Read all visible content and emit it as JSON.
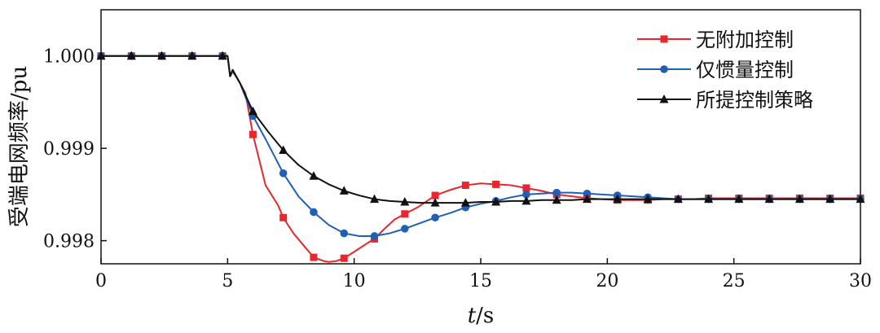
{
  "chart_data": {
    "type": "line",
    "xlabel": "t/s",
    "xlabel_var": "t",
    "xlabel_unit": "/s",
    "ylabel": "受端电网频率/pu",
    "xlim": [
      0,
      30
    ],
    "ylim": [
      0.99775,
      1.0005
    ],
    "x_ticks": [
      "0",
      "5",
      "10",
      "15",
      "20",
      "25",
      "30"
    ],
    "x_tick_values": [
      0,
      5,
      10,
      15,
      20,
      25,
      30
    ],
    "y_ticks": [
      "0.998",
      "0.999",
      "1.000"
    ],
    "y_tick_values": [
      0.998,
      0.999,
      1.0
    ],
    "grid": false,
    "legend_position": "top-right",
    "series": [
      {
        "name": "无附加控制",
        "color": "#e8262b",
        "marker": "square",
        "x": [
          0,
          1.2,
          2.4,
          3.6,
          4.8,
          5.0,
          5.1,
          5.2,
          5.4,
          5.7,
          6.0,
          6.5,
          7.0,
          7.2,
          7.6,
          8.0,
          8.4,
          8.8,
          9.0,
          9.3,
          9.6,
          10.0,
          10.5,
          10.8,
          11.2,
          11.6,
          12.0,
          12.5,
          13.2,
          13.8,
          14.4,
          15.0,
          15.6,
          16.2,
          16.8,
          17.4,
          18.0,
          18.6,
          19.2,
          19.8,
          20.4,
          21.0,
          21.6,
          22.2,
          22.8,
          23.4,
          24.0,
          24.6,
          25.2,
          25.8,
          26.4,
          27.0,
          27.6,
          28.2,
          28.8,
          29.4,
          30.0
        ],
        "y": [
          1.0,
          1.0,
          1.0,
          1.0,
          1.0,
          1.0,
          0.99978,
          0.99983,
          0.99975,
          0.9996,
          0.99915,
          0.9986,
          0.99838,
          0.99825,
          0.99808,
          0.99795,
          0.99782,
          0.99778,
          0.99777,
          0.99778,
          0.99781,
          0.99788,
          0.99797,
          0.99802,
          0.99813,
          0.99823,
          0.99829,
          0.99836,
          0.99849,
          0.99855,
          0.9986,
          0.99862,
          0.99861,
          0.9986,
          0.99857,
          0.99854,
          0.9985,
          0.99848,
          0.99846,
          0.99845,
          0.99844,
          0.99844,
          0.99844,
          0.99845,
          0.99845,
          0.99845,
          0.99846,
          0.99846,
          0.99846,
          0.99846,
          0.99846,
          0.99846,
          0.99846,
          0.99846,
          0.99846,
          0.99846,
          0.99846
        ]
      },
      {
        "name": "仅惯量控制",
        "color": "#1f5fb4",
        "marker": "circle",
        "x": [
          0,
          1.2,
          2.4,
          3.6,
          4.8,
          5.0,
          5.1,
          5.2,
          5.5,
          6.0,
          6.5,
          7.2,
          7.8,
          8.4,
          9.0,
          9.6,
          10.2,
          10.8,
          11.4,
          12.0,
          12.6,
          13.2,
          13.8,
          14.4,
          15.0,
          15.6,
          16.2,
          16.8,
          17.4,
          18.0,
          18.6,
          19.2,
          19.8,
          20.4,
          21.0,
          21.6,
          22.2,
          22.8,
          23.4,
          24.0,
          24.6,
          25.2,
          25.8,
          26.4,
          27.0,
          27.6,
          28.2,
          28.8,
          29.4,
          30.0
        ],
        "y": [
          1.0,
          1.0,
          1.0,
          1.0,
          1.0,
          1.0,
          0.99978,
          0.99984,
          0.9997,
          0.99935,
          0.9991,
          0.99873,
          0.99848,
          0.99831,
          0.99817,
          0.99808,
          0.99805,
          0.99805,
          0.99808,
          0.99813,
          0.99819,
          0.99825,
          0.9983,
          0.99836,
          0.9984,
          0.99843,
          0.99847,
          0.9985,
          0.99851,
          0.99852,
          0.99852,
          0.99851,
          0.9985,
          0.99849,
          0.99848,
          0.99847,
          0.99846,
          0.99845,
          0.99845,
          0.99845,
          0.99845,
          0.99845,
          0.99845,
          0.99845,
          0.99845,
          0.99845,
          0.99845,
          0.99845,
          0.99845,
          0.99845
        ]
      },
      {
        "name": "所提控制策略",
        "color": "#111111",
        "marker": "triangle",
        "x": [
          0,
          1.2,
          2.4,
          3.6,
          4.8,
          5.0,
          5.1,
          5.2,
          5.5,
          6.0,
          6.6,
          7.2,
          7.8,
          8.4,
          9.0,
          9.6,
          10.2,
          10.8,
          11.4,
          12.0,
          12.6,
          13.2,
          13.8,
          14.4,
          15.0,
          15.6,
          16.2,
          16.8,
          17.4,
          18.0,
          18.6,
          19.2,
          19.8,
          20.4,
          21.0,
          21.6,
          22.2,
          22.8,
          23.4,
          24.0,
          24.6,
          25.2,
          25.8,
          26.4,
          27.0,
          27.6,
          28.2,
          28.8,
          29.4,
          30.0
        ],
        "y": [
          1.0,
          1.0,
          1.0,
          1.0,
          1.0,
          1.0,
          0.99978,
          0.99985,
          0.9997,
          0.9994,
          0.99918,
          0.99898,
          0.99882,
          0.9987,
          0.99861,
          0.99854,
          0.99849,
          0.99845,
          0.99843,
          0.99842,
          0.99841,
          0.99841,
          0.99841,
          0.99841,
          0.99842,
          0.99842,
          0.99843,
          0.99843,
          0.99844,
          0.99844,
          0.99844,
          0.99845,
          0.99845,
          0.99845,
          0.99845,
          0.99845,
          0.99845,
          0.99845,
          0.99845,
          0.99845,
          0.99845,
          0.99845,
          0.99845,
          0.99845,
          0.99845,
          0.99845,
          0.99845,
          0.99845,
          0.99845,
          0.99845
        ]
      }
    ],
    "marker_x": [
      [
        0,
        1.2,
        2.4,
        3.6,
        4.8,
        6.0,
        7.2,
        8.4,
        9.6,
        10.8,
        12.0,
        13.2,
        14.4,
        15.6,
        16.8,
        18.0,
        19.2,
        20.4,
        21.6,
        22.8,
        24.0,
        25.2,
        26.4,
        27.6,
        28.8,
        30.0
      ],
      [
        0,
        1.2,
        2.4,
        3.6,
        4.8,
        6.0,
        7.2,
        8.4,
        9.6,
        10.8,
        12.0,
        13.2,
        14.4,
        15.6,
        16.8,
        18.0,
        19.2,
        20.4,
        21.6,
        22.8,
        24.0,
        25.2,
        26.4,
        27.6,
        28.8,
        30.0
      ],
      [
        0,
        1.2,
        2.4,
        3.6,
        4.8,
        6.0,
        7.2,
        8.4,
        9.6,
        10.8,
        12.0,
        13.2,
        14.4,
        15.6,
        16.8,
        18.0,
        19.2,
        20.4,
        21.6,
        22.8,
        24.0,
        25.2,
        26.4,
        27.6,
        28.8,
        30.0
      ]
    ]
  }
}
